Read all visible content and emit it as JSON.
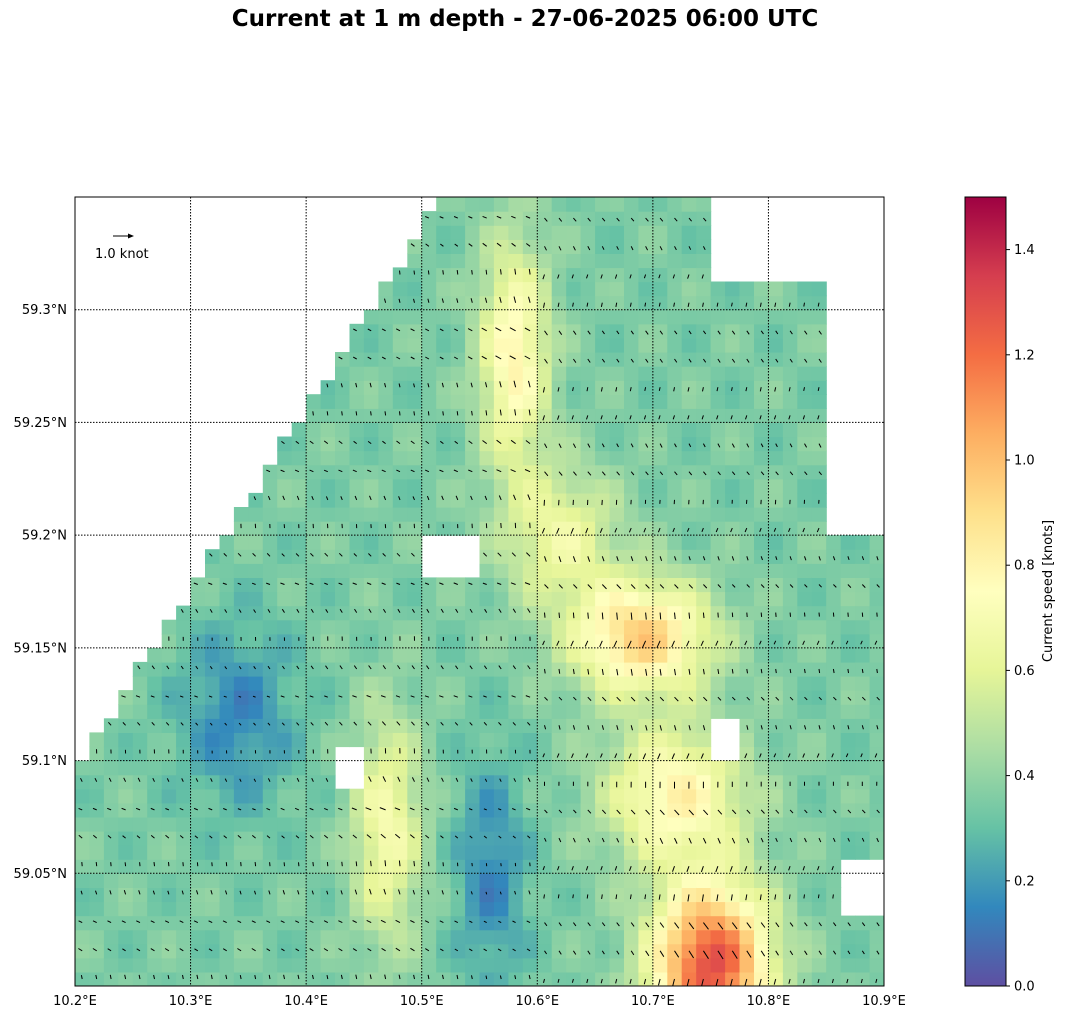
{
  "title": "Current at 1 m depth - 27-06-2025 06:00 UTC",
  "map": {
    "lon_range": [
      10.2,
      10.9
    ],
    "lat_range": [
      59.0,
      59.35
    ],
    "lon_ticks": [
      "10.2°E",
      "10.3°E",
      "10.4°E",
      "10.5°E",
      "10.6°E",
      "10.7°E",
      "10.8°E",
      "10.9°E"
    ],
    "lat_ticks": [
      "59.05°N",
      "59.1°N",
      "59.15°N",
      "59.2°N",
      "59.25°N",
      "59.3°N"
    ],
    "gridlines": true,
    "quiver_key_label": "1.0 knot"
  },
  "colorbar": {
    "label": "Current speed [knots]",
    "min": 0.0,
    "max": 1.5,
    "ticks": [
      "0.0",
      "0.2",
      "0.4",
      "0.6",
      "0.8",
      "1.0",
      "1.2",
      "1.4"
    ],
    "colormap": [
      "#5e4fa2",
      "#3288bd",
      "#66c2a5",
      "#abdda4",
      "#e6f598",
      "#ffffbf",
      "#fee08b",
      "#fdae61",
      "#f46d43",
      "#d53e4f",
      "#9e0142"
    ]
  }
}
